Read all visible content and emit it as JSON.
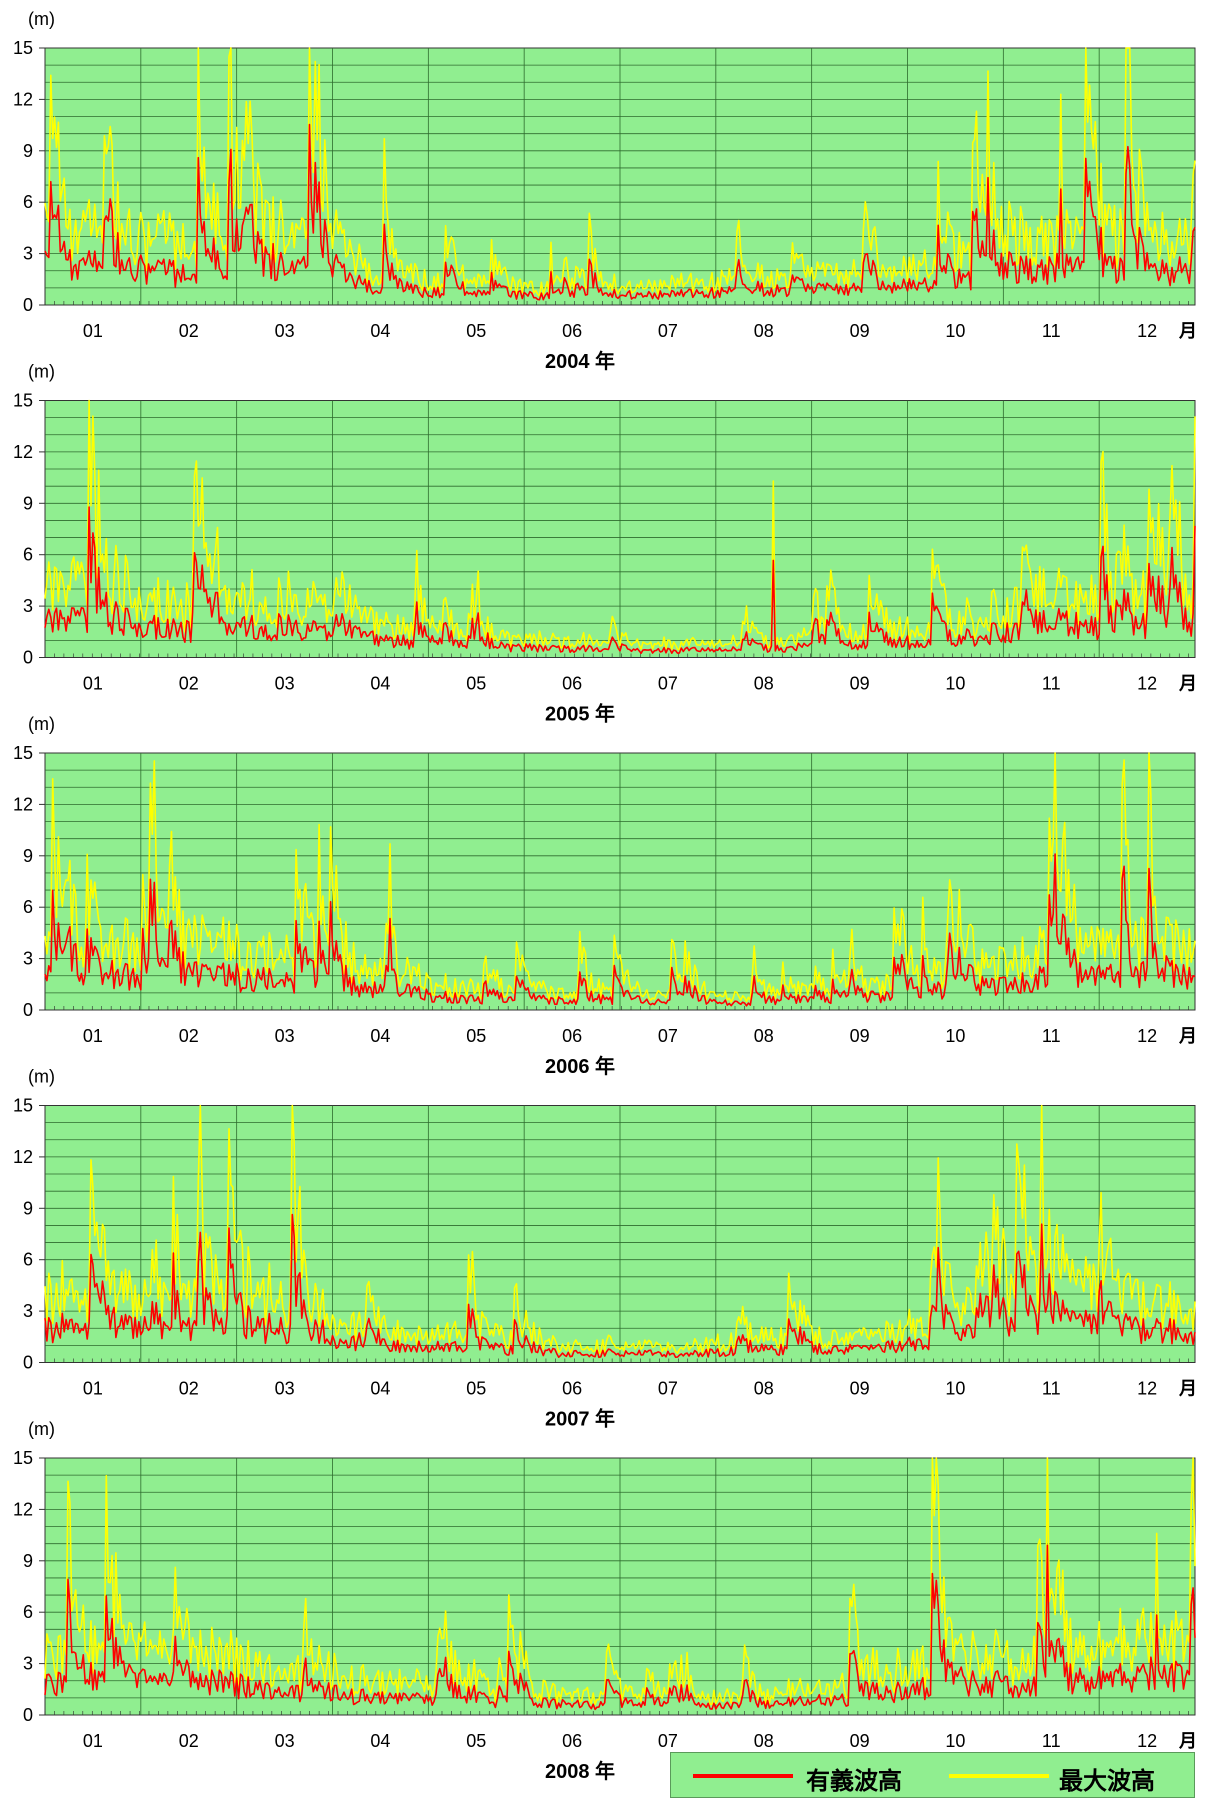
{
  "chart_data": [
    {
      "type": "line",
      "x_label": "2004 年",
      "y_unit": "(m)",
      "month_unit": "月",
      "ylim": [
        0,
        15
      ],
      "y_ticks": [
        "0",
        "3",
        "6",
        "9",
        "12",
        "15"
      ],
      "categories": [
        "01",
        "02",
        "03",
        "04",
        "05",
        "06",
        "07",
        "08",
        "09",
        "10",
        "11",
        "12"
      ],
      "series": [
        {
          "name": "有義波高",
          "color": "#ff0000",
          "values": [
            2.2,
            1.8,
            2.5,
            0.9,
            0.6,
            0.5,
            0.6,
            0.8,
            0.9,
            1.2,
            2.2,
            2.0
          ]
        },
        {
          "name": "最大波高",
          "color": "#ffff00",
          "values": [
            3.8,
            3.2,
            4.2,
            1.6,
            1.1,
            0.9,
            1.0,
            1.5,
            1.6,
            2.2,
            3.8,
            3.5
          ]
        }
      ],
      "peaks": {
        "max_height_peak": 12.3,
        "peak_month": "11"
      }
    },
    {
      "type": "line",
      "x_label": "2005 年",
      "y_unit": "(m)",
      "month_unit": "月",
      "ylim": [
        0,
        15
      ],
      "y_ticks": [
        "0",
        "3",
        "6",
        "9",
        "12",
        "15"
      ],
      "categories": [
        "01",
        "02",
        "03",
        "04",
        "05",
        "06",
        "07",
        "08",
        "09",
        "10",
        "11",
        "12"
      ],
      "series": [
        {
          "name": "有義波高",
          "color": "#ff0000",
          "values": [
            2.2,
            1.6,
            1.8,
            1.0,
            0.6,
            0.5,
            0.4,
            0.5,
            0.7,
            1.0,
            2.0,
            1.8
          ]
        },
        {
          "name": "最大波高",
          "color": "#ffff00",
          "values": [
            3.8,
            3.0,
            3.2,
            1.8,
            1.1,
            0.9,
            0.8,
            0.9,
            1.3,
            1.8,
            3.4,
            3.2
          ]
        }
      ],
      "peaks": {
        "max_height_peak": 10.3,
        "peak_month": "08"
      }
    },
    {
      "type": "line",
      "x_label": "2006 年",
      "y_unit": "(m)",
      "month_unit": "月",
      "ylim": [
        0,
        15
      ],
      "y_ticks": [
        "0",
        "3",
        "6",
        "9",
        "12",
        "15"
      ],
      "categories": [
        "01",
        "02",
        "03",
        "04",
        "05",
        "06",
        "07",
        "08",
        "09",
        "10",
        "11",
        "12"
      ],
      "series": [
        {
          "name": "有義波高",
          "color": "#ff0000",
          "values": [
            2.0,
            2.0,
            1.8,
            1.1,
            0.6,
            0.5,
            0.5,
            0.4,
            0.6,
            1.0,
            1.9,
            1.8
          ]
        },
        {
          "name": "最大波高",
          "color": "#ffff00",
          "values": [
            3.6,
            3.6,
            3.2,
            1.9,
            1.1,
            0.9,
            0.9,
            0.7,
            1.1,
            1.8,
            3.4,
            3.2
          ]
        }
      ],
      "peaks": {
        "max_height_peak": 9.7,
        "peak_month": "04"
      }
    },
    {
      "type": "line",
      "x_label": "2007 年",
      "y_unit": "(m)",
      "month_unit": "月",
      "ylim": [
        0,
        15
      ],
      "y_ticks": [
        "0",
        "3",
        "6",
        "9",
        "12",
        "15"
      ],
      "categories": [
        "01",
        "02",
        "03",
        "04",
        "05",
        "06",
        "07",
        "08",
        "09",
        "10",
        "11",
        "12"
      ],
      "series": [
        {
          "name": "有義波高",
          "color": "#ff0000",
          "values": [
            2.0,
            1.8,
            2.0,
            1.0,
            0.8,
            0.5,
            0.5,
            0.7,
            0.8,
            1.3,
            2.4,
            1.8
          ]
        },
        {
          "name": "最大波高",
          "color": "#ffff00",
          "values": [
            3.5,
            3.2,
            3.6,
            1.8,
            1.4,
            0.9,
            0.9,
            1.3,
            1.4,
            2.4,
            4.2,
            3.2
          ]
        }
      ],
      "peaks": {
        "max_height_peak": 10.6,
        "peak_month": "02"
      }
    },
    {
      "type": "line",
      "x_label": "2008 年",
      "y_unit": "(m)",
      "month_unit": "月",
      "ylim": [
        0,
        15
      ],
      "y_ticks": [
        "0",
        "3",
        "6",
        "9",
        "12",
        "15"
      ],
      "categories": [
        "01",
        "02",
        "03",
        "04",
        "05",
        "06",
        "07",
        "08",
        "09",
        "10",
        "11",
        "12"
      ],
      "series": [
        {
          "name": "有義波高",
          "color": "#ff0000",
          "values": [
            1.8,
            2.0,
            1.4,
            1.0,
            0.8,
            0.6,
            0.5,
            0.6,
            1.0,
            1.8,
            1.8,
            2.4
          ]
        },
        {
          "name": "最大波高",
          "color": "#ffff00",
          "values": [
            3.2,
            3.5,
            2.4,
            1.8,
            1.4,
            1.1,
            0.9,
            1.1,
            1.8,
            3.2,
            3.2,
            4.2
          ]
        }
      ],
      "peaks": {
        "max_height_peak": 10.6,
        "peak_month": "12"
      }
    }
  ],
  "legend": {
    "sig_label": "有義波高",
    "max_label": "最大波高",
    "sig_color": "#ff0000",
    "max_color": "#ffff00"
  },
  "style": {
    "plot_bg": "#90ee90",
    "grid_color": "#2e6b2e"
  }
}
